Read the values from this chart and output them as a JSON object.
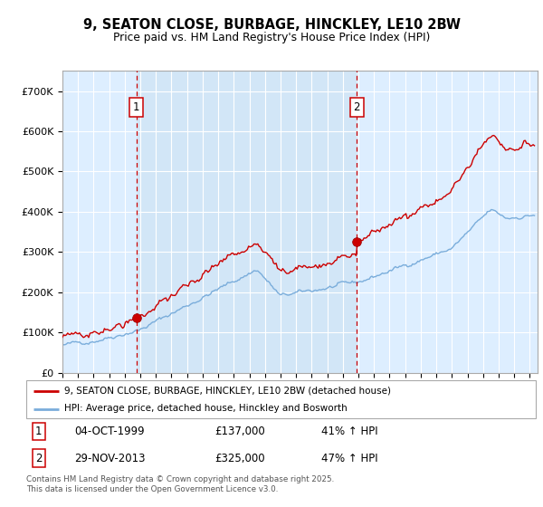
{
  "title": "9, SEATON CLOSE, BURBAGE, HINCKLEY, LE10 2BW",
  "subtitle": "Price paid vs. HM Land Registry's House Price Index (HPI)",
  "sale1_date": "04-OCT-1999",
  "sale1_price": 137000,
  "sale1_label": "41% ↑ HPI",
  "sale2_date": "29-NOV-2013",
  "sale2_price": 325000,
  "sale2_label": "47% ↑ HPI",
  "legend_line1": "9, SEATON CLOSE, BURBAGE, HINCKLEY, LE10 2BW (detached house)",
  "legend_line2": "HPI: Average price, detached house, Hinckley and Bosworth",
  "footer": "Contains HM Land Registry data © Crown copyright and database right 2025.\nThis data is licensed under the Open Government Licence v3.0.",
  "line_color_red": "#cc0000",
  "line_color_blue": "#7aaddb",
  "background_color": "#ddeeff",
  "highlight_color": "#cce0f5",
  "vline_color": "#cc0000",
  "ylim": [
    0,
    750000
  ],
  "yticks": [
    0,
    100000,
    200000,
    300000,
    400000,
    500000,
    600000,
    700000
  ],
  "ytick_labels": [
    "£0",
    "£100K",
    "£200K",
    "£300K",
    "£400K",
    "£500K",
    "£600K",
    "£700K"
  ],
  "sale1_year": 1999.75,
  "sale2_year": 2013.9
}
